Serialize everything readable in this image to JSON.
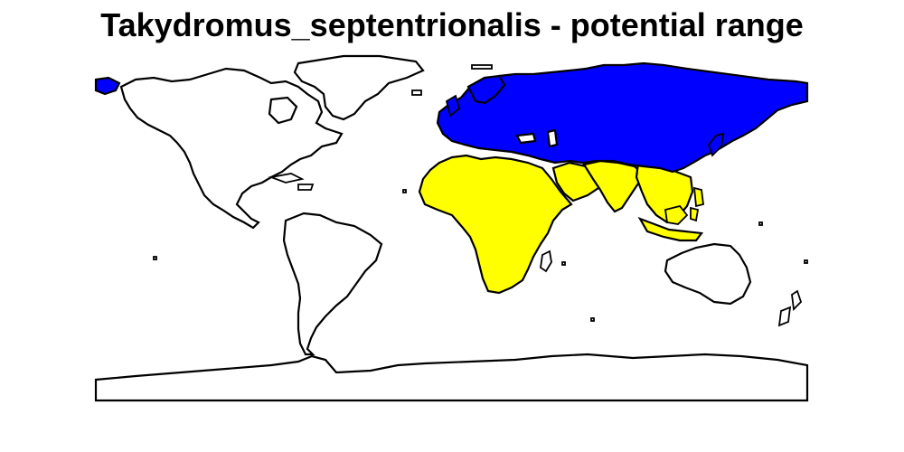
{
  "map": {
    "title": "Takydromus_septentrionalis - potential range",
    "colors": {
      "background": "#ffffff",
      "outline": "#000000",
      "unsuitable_land": "#ffffff",
      "potential_range": "#ffff00",
      "core_range": "#0000ff"
    },
    "regions": [
      {
        "id": "north-america",
        "name": "North America",
        "status": "unsuitable"
      },
      {
        "id": "greenland",
        "name": "Greenland",
        "status": "unsuitable"
      },
      {
        "id": "south-america",
        "name": "South America",
        "status": "unsuitable"
      },
      {
        "id": "africa",
        "name": "Africa",
        "status": "potential"
      },
      {
        "id": "arabia",
        "name": "Arabian Peninsula",
        "status": "potential"
      },
      {
        "id": "south-asia",
        "name": "South Asia",
        "status": "potential"
      },
      {
        "id": "southeast-asia",
        "name": "Southeast Asia",
        "status": "potential"
      },
      {
        "id": "indonesia",
        "name": "Indonesia",
        "status": "potential"
      },
      {
        "id": "madagascar",
        "name": "Madagascar",
        "status": "unsuitable"
      },
      {
        "id": "eurasia",
        "name": "Europe and Northern Asia",
        "status": "core"
      },
      {
        "id": "japan",
        "name": "Japan",
        "status": "core"
      },
      {
        "id": "alaska-west",
        "name": "Chukotka / Alaska tip",
        "status": "core"
      },
      {
        "id": "australia",
        "name": "Australia",
        "status": "unsuitable"
      },
      {
        "id": "new-zealand",
        "name": "New Zealand",
        "status": "unsuitable"
      },
      {
        "id": "antarctica",
        "name": "Antarctica",
        "status": "unsuitable"
      }
    ]
  }
}
